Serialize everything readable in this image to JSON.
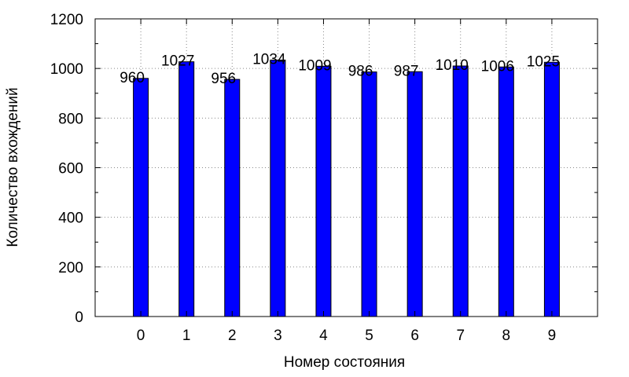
{
  "chart_data": {
    "type": "bar",
    "categories": [
      "0",
      "1",
      "2",
      "3",
      "4",
      "5",
      "6",
      "7",
      "8",
      "9"
    ],
    "values": [
      960,
      1027,
      956,
      1034,
      1009,
      986,
      987,
      1010,
      1006,
      1025
    ],
    "data_labels": [
      "960",
      "1027",
      "956",
      "1034",
      "1009",
      "986",
      "987",
      "1010",
      "1006",
      "1025"
    ],
    "xlabel": "Номер состояния",
    "ylabel": "Количество вхождений",
    "ylim": [
      0,
      1200
    ],
    "yticks": [
      0,
      200,
      400,
      600,
      800,
      1000,
      1200
    ],
    "ytick_labels": [
      "0",
      "200",
      "400",
      "600",
      "800",
      "1000",
      "1200"
    ],
    "xlim": [
      -1,
      10
    ],
    "grid": true,
    "grid_style": "dotted",
    "bar_color": "#0000ff",
    "bar_edge_color": "#000000"
  }
}
